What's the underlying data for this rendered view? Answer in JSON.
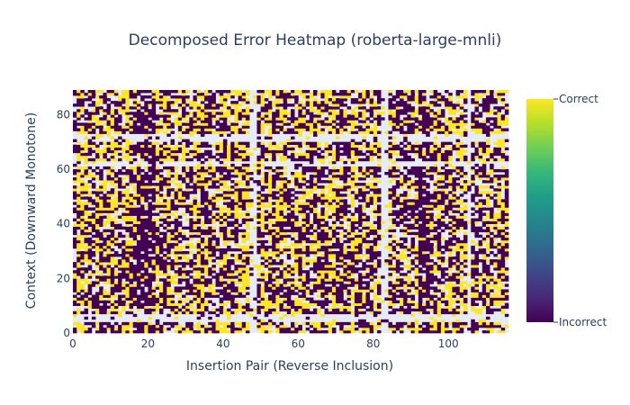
{
  "chart_data": {
    "type": "heatmap",
    "title": "Decomposed Error Heatmap (roberta-large-mnli)",
    "xlabel": "Insertion Pair (Reverse Inclusion)",
    "ylabel": "Context (Downward Monotone)",
    "xlim": [
      0,
      116
    ],
    "ylim": [
      0,
      89
    ],
    "x_ticks": [
      0,
      20,
      40,
      60,
      80,
      100
    ],
    "y_ticks": [
      0,
      20,
      40,
      60,
      80
    ],
    "colorscale": "Viridis",
    "colorbar": {
      "top_label": "Correct",
      "bottom_label": "Incorrect"
    },
    "colors": {
      "correct": "#fde725",
      "incorrect": "#440154",
      "missing": "#e5ecf6",
      "text": "#2a3f5f"
    },
    "cell_values": {
      "correct": 1,
      "incorrect": 0
    },
    "banding": {
      "column_bands": [
        {
          "x0": 17,
          "x1": 22,
          "kind": "incorrect"
        },
        {
          "x0": 47,
          "x1": 49,
          "kind": "missing"
        },
        {
          "x0": 82,
          "x1": 84,
          "kind": "missing"
        },
        {
          "x0": 92,
          "x1": 95,
          "kind": "incorrect"
        },
        {
          "x0": 105,
          "x1": 106,
          "kind": "missing"
        }
      ],
      "row_bands": [
        {
          "y0": 0,
          "y1": 4,
          "kind": "mixed"
        },
        {
          "y0": 4,
          "y1": 7,
          "kind": "missing"
        },
        {
          "y0": 61,
          "y1": 63,
          "kind": "missing"
        },
        {
          "y0": 70,
          "y1": 73,
          "kind": "missing"
        }
      ]
    }
  }
}
